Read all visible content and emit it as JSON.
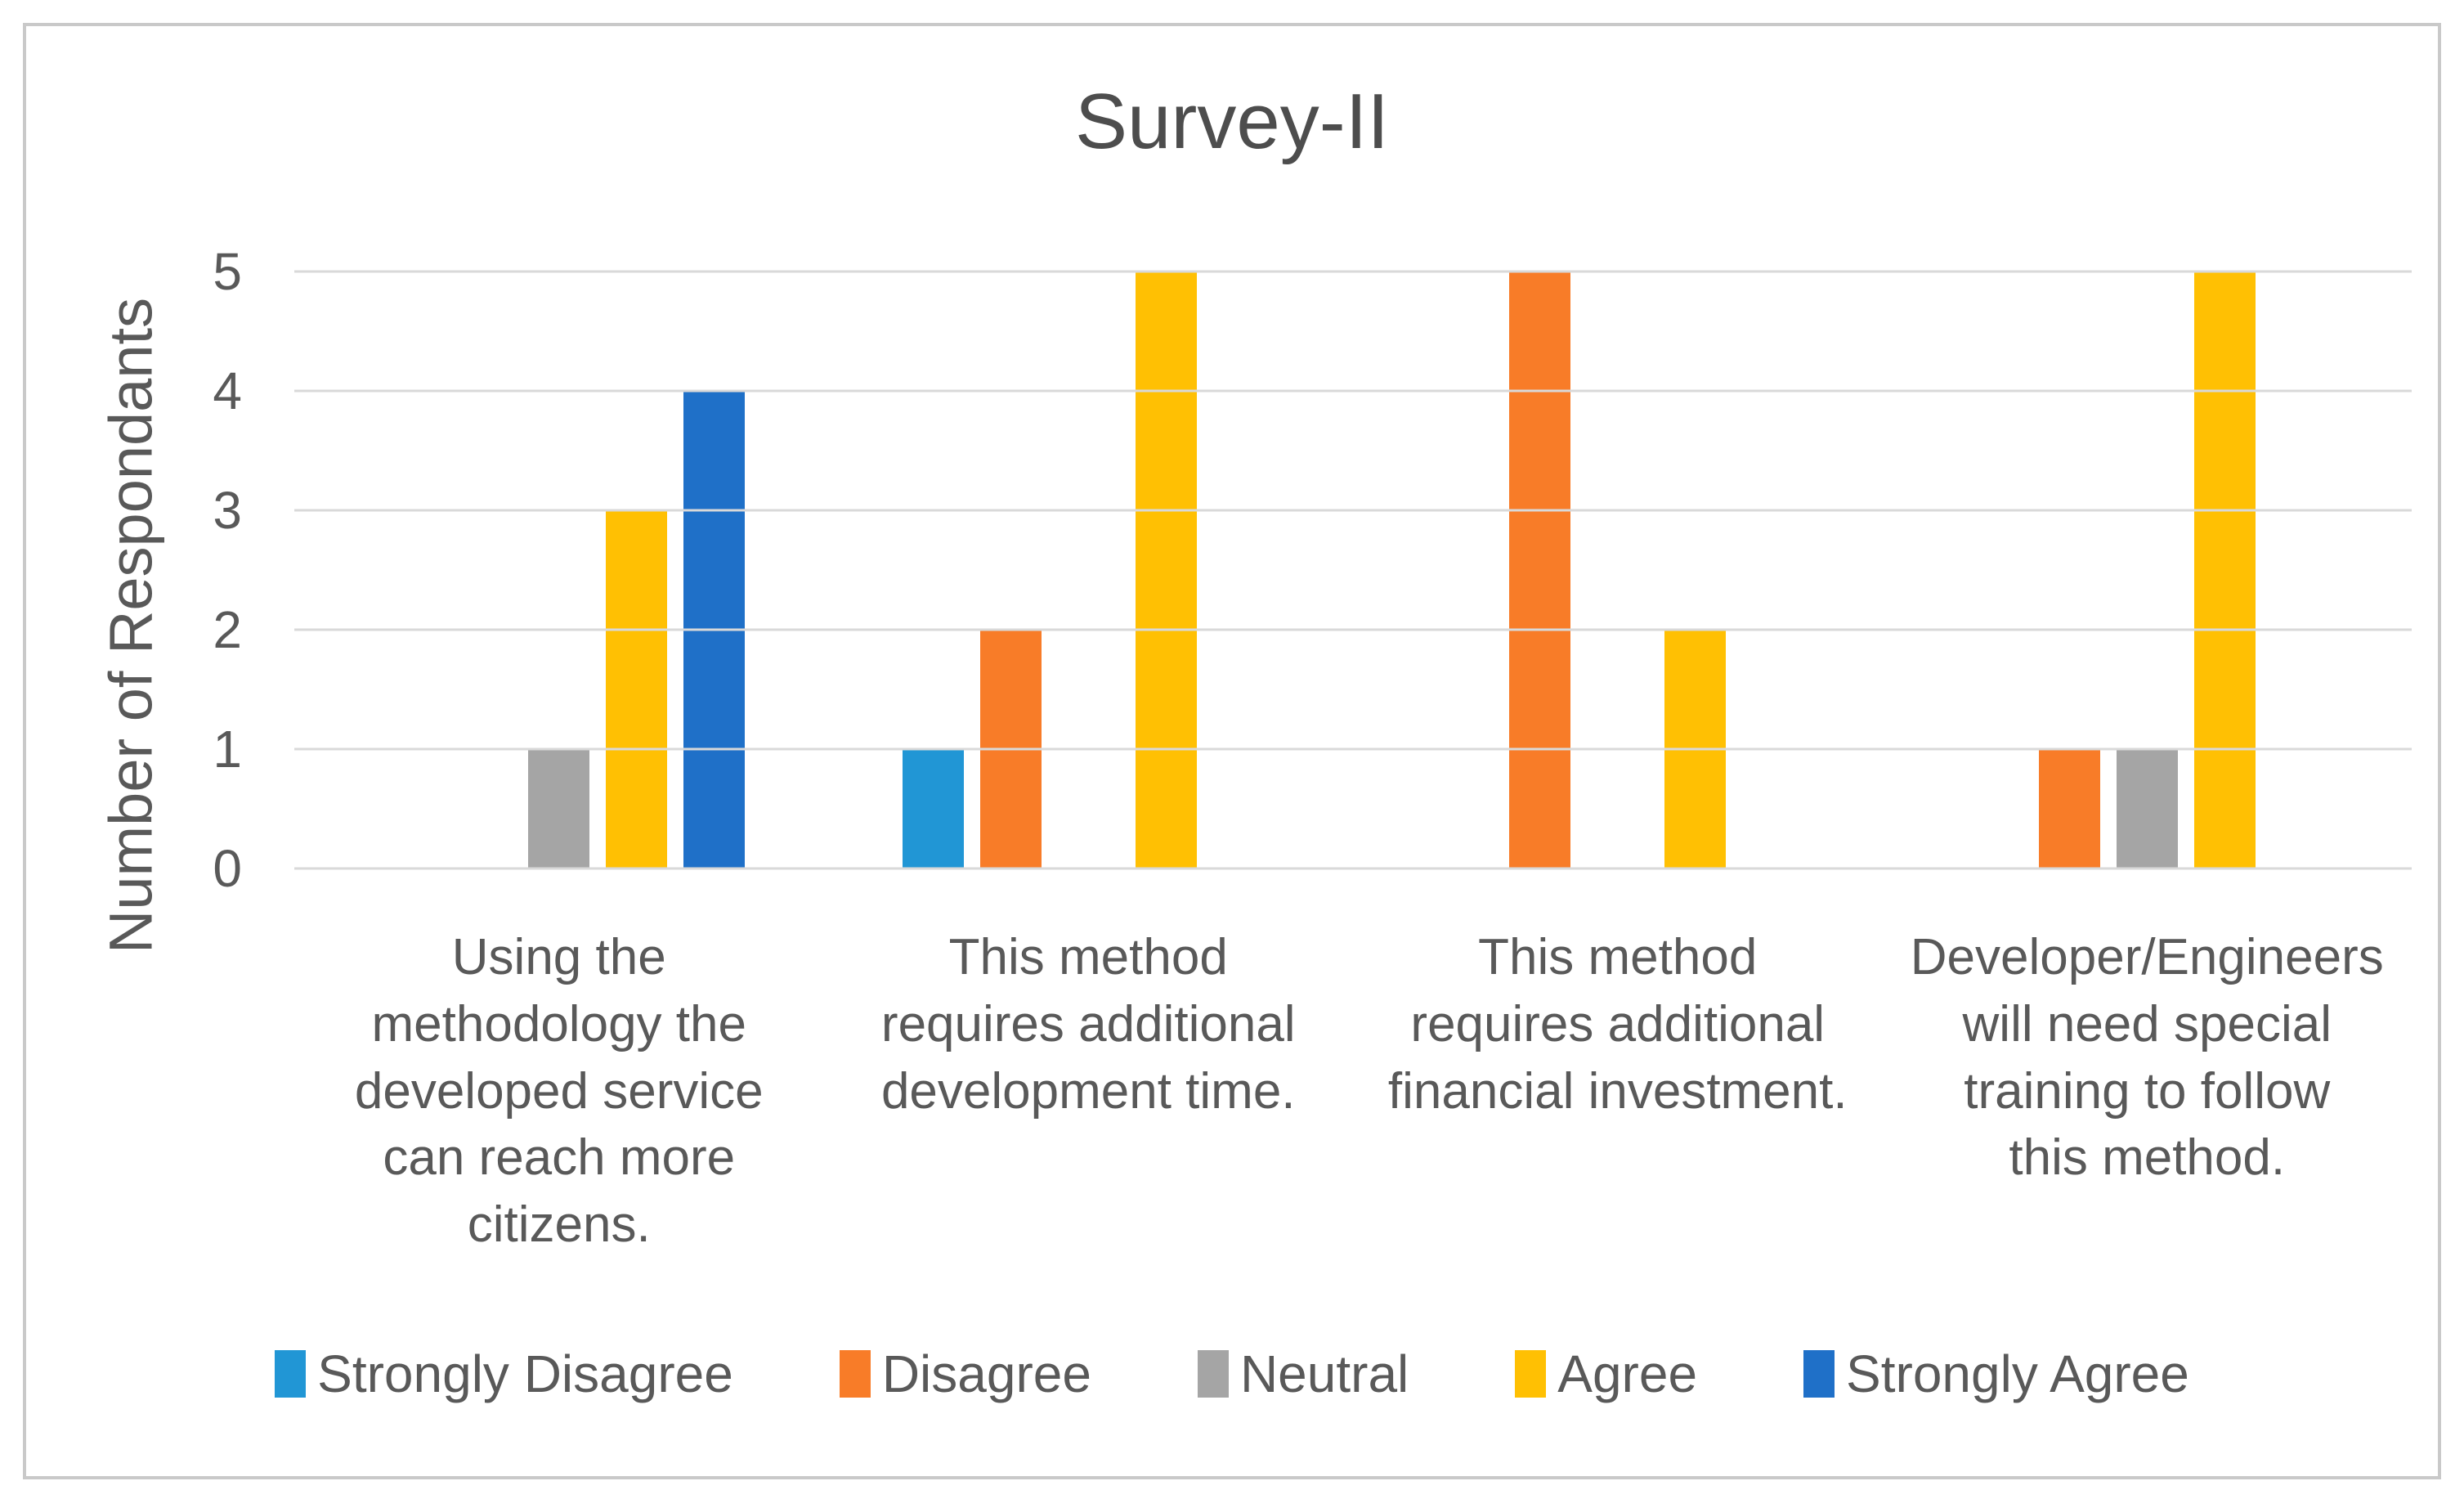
{
  "colors": {
    "text": "#595959",
    "title_text": "#4d4d4d",
    "gridline": "#d9d9d9",
    "frame_border": "#c9c9c9",
    "background": "#ffffff"
  },
  "chart_data": {
    "type": "bar",
    "title": "Survey-II",
    "ylabel": "Number of Respondants",
    "xlabel": "",
    "ylim": [
      0,
      5
    ],
    "yticks": [
      0,
      1,
      2,
      3,
      4,
      5
    ],
    "grid": true,
    "legend_position": "bottom",
    "categories": [
      [
        "Using the",
        "methodology the",
        "developed service",
        "can reach more",
        "citizens."
      ],
      [
        "This method",
        "requires additional",
        "development time."
      ],
      [
        "This method",
        "requires additional",
        "financial investment."
      ],
      [
        "Developer/Engineers",
        "will need special",
        "training to follow",
        "this method."
      ]
    ],
    "series": [
      {
        "name": "Strongly Disagree",
        "color": "#2196d5",
        "values": [
          0,
          1,
          0,
          0
        ]
      },
      {
        "name": "Disagree",
        "color": "#f87c28",
        "values": [
          0,
          2,
          5,
          1
        ]
      },
      {
        "name": "Neutral",
        "color": "#a5a5a5",
        "values": [
          1,
          0,
          0,
          1
        ]
      },
      {
        "name": "Agree",
        "color": "#ffc003",
        "values": [
          3,
          5,
          2,
          5
        ]
      },
      {
        "name": "Strongly Agree",
        "color": "#1f70c8",
        "values": [
          4,
          0,
          0,
          0
        ]
      }
    ]
  }
}
